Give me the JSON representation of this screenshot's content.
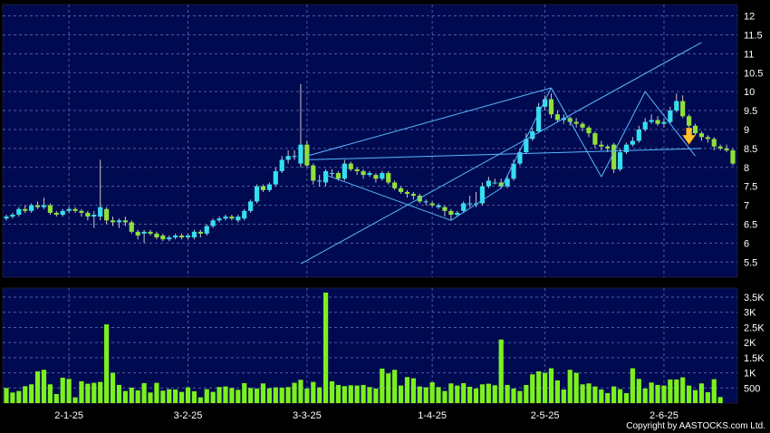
{
  "copyright": "Copyright by AASTOCKS.com Ltd.",
  "colors": {
    "background": "#000000",
    "plot_bg": "#000a50",
    "grid": "#4d5aa6",
    "up": "#33e0f0",
    "down": "#8ee03a",
    "volume": "#7cf01c",
    "trendline": "#55b8ff",
    "arrow": "#ffc22e"
  },
  "chart_data": [
    {
      "type": "candlestick",
      "title": "",
      "xlabel": "",
      "ylabel": "",
      "x_ticks": [
        {
          "label": "2-1-25",
          "index": 10
        },
        {
          "label": "3-2-25",
          "index": 29
        },
        {
          "label": "3-3-25",
          "index": 48
        },
        {
          "label": "1-4-25",
          "index": 68
        },
        {
          "label": "2-5-25",
          "index": 86
        },
        {
          "label": "2-6-25",
          "index": 105
        }
      ],
      "y_ticks": [
        "5.5",
        "6",
        "6.5",
        "7",
        "7.5",
        "8",
        "8.5",
        "9",
        "9.5",
        "10",
        "10.5",
        "11",
        "11.5",
        "12"
      ],
      "ylim": [
        5.1,
        12.3
      ],
      "grid": true,
      "candles": [
        [
          6.65,
          6.7,
          6.6,
          6.75
        ],
        [
          6.7,
          6.75,
          6.65,
          6.8
        ],
        [
          6.75,
          6.9,
          6.7,
          6.95
        ],
        [
          6.9,
          6.85,
          6.8,
          7.0
        ],
        [
          6.85,
          7.0,
          6.8,
          7.05
        ],
        [
          7.0,
          6.95,
          6.9,
          7.1
        ],
        [
          6.95,
          7.0,
          6.9,
          7.2
        ],
        [
          7.0,
          6.8,
          6.75,
          7.05
        ],
        [
          6.8,
          6.75,
          6.7,
          6.85
        ],
        [
          6.75,
          6.85,
          6.7,
          6.9
        ],
        [
          6.85,
          6.9,
          6.8,
          6.95
        ],
        [
          6.9,
          6.85,
          6.8,
          6.95
        ],
        [
          6.85,
          6.8,
          6.7,
          6.9
        ],
        [
          6.8,
          6.7,
          6.6,
          6.85
        ],
        [
          6.7,
          6.75,
          6.4,
          6.85
        ],
        [
          6.7,
          6.95,
          6.6,
          8.2
        ],
        [
          6.9,
          6.6,
          6.5,
          6.95
        ],
        [
          6.6,
          6.55,
          6.45,
          6.7
        ],
        [
          6.55,
          6.6,
          6.4,
          6.65
        ],
        [
          6.6,
          6.55,
          6.45,
          6.7
        ],
        [
          6.55,
          6.3,
          6.25,
          6.6
        ],
        [
          6.3,
          6.2,
          6.1,
          6.35
        ],
        [
          6.25,
          6.3,
          6.0,
          6.35
        ],
        [
          6.3,
          6.25,
          6.2,
          6.35
        ],
        [
          6.25,
          6.15,
          6.1,
          6.3
        ],
        [
          6.2,
          6.1,
          6.05,
          6.25
        ],
        [
          6.1,
          6.15,
          6.05,
          6.2
        ],
        [
          6.15,
          6.2,
          6.1,
          6.25
        ],
        [
          6.2,
          6.15,
          6.1,
          6.25
        ],
        [
          6.15,
          6.2,
          6.1,
          6.25
        ],
        [
          6.15,
          6.3,
          6.1,
          6.35
        ],
        [
          6.3,
          6.25,
          6.15,
          6.35
        ],
        [
          6.25,
          6.45,
          6.2,
          6.5
        ],
        [
          6.45,
          6.6,
          6.4,
          6.65
        ],
        [
          6.6,
          6.65,
          6.55,
          6.7
        ],
        [
          6.65,
          6.7,
          6.6,
          6.75
        ],
        [
          6.7,
          6.65,
          6.6,
          6.75
        ],
        [
          6.6,
          6.7,
          6.55,
          6.75
        ],
        [
          6.65,
          6.85,
          6.6,
          6.9
        ],
        [
          6.85,
          7.1,
          6.8,
          7.15
        ],
        [
          7.1,
          7.5,
          7.05,
          7.55
        ],
        [
          7.5,
          7.4,
          7.35,
          7.55
        ],
        [
          7.4,
          7.55,
          7.35,
          7.6
        ],
        [
          7.55,
          7.9,
          7.5,
          8.0
        ],
        [
          7.9,
          8.2,
          7.85,
          8.3
        ],
        [
          8.2,
          8.3,
          8.1,
          8.45
        ],
        [
          8.3,
          8.3,
          8.2,
          8.45
        ],
        [
          8.1,
          8.6,
          8.0,
          10.2
        ],
        [
          8.6,
          8.05,
          8.0,
          8.7
        ],
        [
          8.05,
          7.65,
          7.55,
          8.1
        ],
        [
          7.65,
          7.65,
          7.5,
          7.8
        ],
        [
          7.6,
          7.9,
          7.5,
          7.95
        ],
        [
          7.85,
          7.85,
          7.75,
          7.95
        ],
        [
          7.85,
          7.7,
          7.65,
          7.9
        ],
        [
          7.7,
          8.1,
          7.65,
          8.2
        ],
        [
          8.1,
          7.95,
          7.9,
          8.15
        ],
        [
          7.95,
          7.9,
          7.8,
          8.0
        ],
        [
          7.9,
          7.8,
          7.7,
          7.95
        ],
        [
          7.8,
          7.85,
          7.75,
          7.9
        ],
        [
          7.8,
          7.7,
          7.6,
          7.85
        ],
        [
          7.7,
          7.85,
          7.65,
          7.9
        ],
        [
          7.85,
          7.6,
          7.55,
          7.9
        ],
        [
          7.6,
          7.45,
          7.4,
          7.65
        ],
        [
          7.45,
          7.35,
          7.3,
          7.5
        ],
        [
          7.35,
          7.3,
          7.2,
          7.4
        ],
        [
          7.3,
          7.25,
          7.15,
          7.35
        ],
        [
          7.25,
          7.1,
          7.05,
          7.3
        ],
        [
          7.1,
          7.1,
          7.0,
          7.15
        ],
        [
          7.05,
          7.0,
          6.95,
          7.1
        ],
        [
          6.95,
          7.0,
          6.9,
          7.05
        ],
        [
          6.95,
          6.85,
          6.7,
          7.0
        ],
        [
          6.85,
          6.75,
          6.6,
          6.9
        ],
        [
          6.75,
          6.8,
          6.7,
          6.85
        ],
        [
          6.85,
          7.05,
          6.8,
          7.1
        ],
        [
          7.05,
          7.05,
          6.95,
          7.25
        ],
        [
          7.05,
          7.05,
          6.95,
          7.35
        ],
        [
          7.05,
          7.5,
          7.0,
          7.6
        ],
        [
          7.5,
          7.65,
          7.45,
          7.75
        ],
        [
          7.6,
          7.6,
          7.55,
          7.7
        ],
        [
          7.6,
          7.5,
          7.45,
          7.7
        ],
        [
          7.5,
          7.7,
          7.45,
          7.8
        ],
        [
          7.7,
          8.1,
          7.65,
          8.2
        ],
        [
          8.1,
          8.4,
          8.05,
          8.5
        ],
        [
          8.4,
          8.75,
          8.35,
          8.9
        ],
        [
          8.75,
          8.95,
          8.7,
          9.05
        ],
        [
          8.95,
          9.6,
          8.9,
          9.7
        ],
        [
          9.6,
          9.8,
          9.5,
          9.9
        ],
        [
          9.8,
          9.4,
          9.3,
          9.95
        ],
        [
          9.4,
          9.25,
          9.2,
          9.5
        ],
        [
          9.25,
          9.3,
          9.15,
          9.4
        ],
        [
          9.3,
          9.2,
          9.1,
          9.35
        ],
        [
          9.2,
          9.15,
          9.05,
          9.3
        ],
        [
          9.15,
          9.05,
          8.95,
          9.2
        ],
        [
          9.05,
          8.9,
          8.8,
          9.1
        ],
        [
          8.9,
          8.6,
          8.5,
          8.95
        ],
        [
          8.6,
          8.55,
          8.45,
          8.7
        ],
        [
          8.55,
          8.5,
          8.4,
          8.6
        ],
        [
          8.6,
          7.95,
          7.85,
          8.65
        ],
        [
          7.95,
          8.4,
          7.9,
          8.5
        ],
        [
          8.4,
          8.6,
          8.35,
          8.65
        ],
        [
          8.6,
          8.7,
          8.55,
          8.8
        ],
        [
          8.7,
          9.0,
          8.65,
          9.1
        ],
        [
          9.0,
          9.2,
          8.95,
          9.3
        ],
        [
          9.2,
          9.25,
          9.15,
          9.4
        ],
        [
          9.25,
          9.15,
          9.1,
          9.35
        ],
        [
          9.15,
          9.2,
          9.05,
          9.3
        ],
        [
          9.2,
          9.5,
          9.15,
          9.6
        ],
        [
          9.5,
          9.75,
          9.45,
          9.95
        ],
        [
          9.75,
          9.35,
          9.3,
          9.9
        ],
        [
          9.35,
          9.1,
          9.05,
          9.4
        ],
        [
          9.1,
          8.9,
          8.85,
          9.15
        ],
        [
          8.9,
          8.8,
          8.7,
          8.95
        ],
        [
          8.8,
          8.75,
          8.65,
          8.85
        ],
        [
          8.75,
          8.55,
          8.45,
          8.8
        ],
        [
          8.55,
          8.5,
          8.45,
          8.6
        ],
        [
          8.5,
          8.45,
          8.4,
          8.6
        ],
        [
          8.45,
          8.1,
          8.05,
          8.5
        ]
      ],
      "trendlines": [
        {
          "from": [
            47,
            5.45
          ],
          "to": [
            111,
            11.3
          ]
        },
        {
          "from": [
            48,
            8.2
          ],
          "to": [
            111,
            8.5
          ]
        },
        {
          "from": [
            48,
            8.3
          ],
          "to": [
            87,
            10.1
          ]
        },
        {
          "from": [
            51,
            7.8
          ],
          "to": [
            71,
            6.6
          ]
        },
        {
          "from": [
            71,
            6.6
          ],
          "to": [
            79,
            7.45
          ]
        },
        {
          "from": [
            79,
            7.45
          ],
          "to": [
            87,
            10.1
          ]
        },
        {
          "from": [
            87,
            10.1
          ],
          "to": [
            95,
            7.75
          ]
        },
        {
          "from": [
            95,
            7.75
          ],
          "to": [
            102,
            10.0
          ]
        },
        {
          "from": [
            102,
            10.0
          ],
          "to": [
            110,
            8.3
          ]
        }
      ],
      "marker": {
        "type": "arrow-down",
        "index": 109,
        "value": 8.8
      }
    },
    {
      "type": "bar",
      "title": "",
      "ylabel": "",
      "y_ticks": [
        {
          "label": "500",
          "value": 500
        },
        {
          "label": "1K",
          "value": 1000
        },
        {
          "label": "1.5K",
          "value": 1500
        },
        {
          "label": "2K",
          "value": 2000
        },
        {
          "label": "2.5K",
          "value": 2500
        },
        {
          "label": "3K",
          "value": 3000
        },
        {
          "label": "3.5K",
          "value": 3500
        }
      ],
      "ylim": [
        0,
        3800
      ],
      "values": [
        500,
        350,
        400,
        560,
        620,
        1050,
        1100,
        620,
        300,
        840,
        800,
        190,
        720,
        640,
        670,
        700,
        2600,
        1000,
        600,
        400,
        510,
        420,
        660,
        350,
        670,
        410,
        460,
        450,
        370,
        520,
        390,
        190,
        460,
        370,
        530,
        550,
        500,
        440,
        660,
        500,
        480,
        650,
        490,
        520,
        510,
        530,
        670,
        770,
        480,
        700,
        520,
        3650,
        720,
        600,
        560,
        590,
        580,
        600,
        530,
        480,
        1140,
        980,
        1100,
        580,
        860,
        820,
        550,
        520,
        690,
        530,
        400,
        650,
        580,
        660,
        540,
        480,
        620,
        640,
        590,
        2100,
        600,
        480,
        400,
        600,
        950,
        1050,
        1000,
        1150,
        750,
        450,
        1100,
        1000,
        620,
        650,
        550,
        450,
        330,
        550,
        460,
        330,
        1150,
        800,
        480,
        680,
        600,
        580,
        780,
        780,
        850,
        580,
        430,
        650,
        360,
        790,
        200
      ]
    }
  ]
}
